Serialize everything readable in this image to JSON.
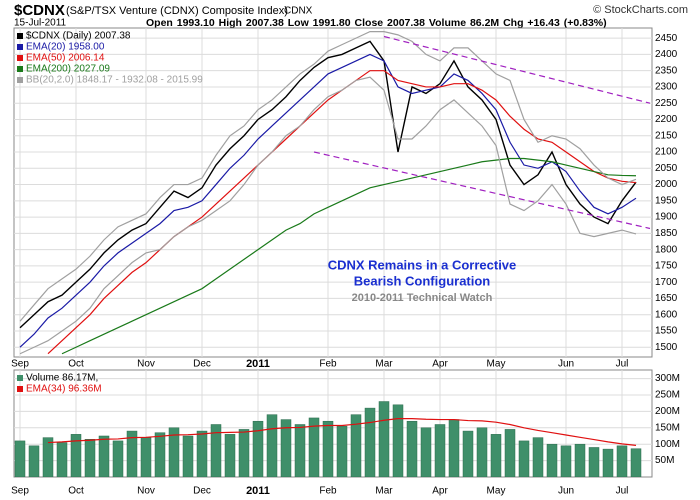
{
  "header": {
    "symbol": "$CDNX",
    "name": "(S&P/TSX Venture (CDNX) Composite Index)",
    "exchange": "CDNX",
    "date": "15-Jul-2011",
    "quote": "Open 1993.10  High 2007.38  Low 1991.80  Close 2007.38  Volume 86.2M  Chg +16.43 (+0.83%)",
    "credit": "© StockCharts.com"
  },
  "chart_data": [
    {
      "type": "line",
      "panel": "price",
      "categories": [
        "Sep",
        null,
        null,
        null,
        "Oct",
        null,
        null,
        null,
        null,
        "Nov",
        null,
        null,
        null,
        "Dec",
        null,
        null,
        null,
        "2011",
        null,
        null,
        null,
        null,
        "Feb",
        null,
        null,
        null,
        "Mar",
        null,
        null,
        null,
        "Apr",
        null,
        null,
        null,
        "May",
        null,
        null,
        null,
        null,
        "Jun",
        null,
        null,
        null,
        "Jul",
        null
      ],
      "series": [
        {
          "name": "$CDNX (Daily) 2007.38",
          "color": "#000000",
          "values": [
            1560,
            1600,
            1640,
            1660,
            1700,
            1740,
            1790,
            1830,
            1860,
            1880,
            1930,
            1980,
            1960,
            1990,
            2060,
            2110,
            2150,
            2200,
            2230,
            2270,
            2320,
            2360,
            2390,
            2400,
            2420,
            2440,
            2380,
            2100,
            2300,
            2280,
            2310,
            2380,
            2300,
            2260,
            2200,
            2060,
            2000,
            2030,
            2100,
            2000,
            1940,
            1900,
            1880,
            1950,
            2007.38
          ]
        },
        {
          "name": "EMA(20) 1958.00",
          "color": "#1a1aa6",
          "values": [
            1500,
            1540,
            1590,
            1620,
            1660,
            1700,
            1750,
            1790,
            1820,
            1850,
            1880,
            1920,
            1930,
            1950,
            2000,
            2050,
            2090,
            2140,
            2180,
            2220,
            2260,
            2300,
            2340,
            2360,
            2380,
            2400,
            2380,
            2300,
            2280,
            2290,
            2300,
            2340,
            2320,
            2280,
            2230,
            2130,
            2060,
            2050,
            2070,
            2040,
            1980,
            1930,
            1910,
            1930,
            1958
          ]
        },
        {
          "name": "EMA(50) 2006.14",
          "color": "#e01010",
          "values": [
            null,
            null,
            1480,
            1520,
            1560,
            1600,
            1650,
            1690,
            1730,
            1760,
            1800,
            1840,
            1870,
            1900,
            1940,
            1980,
            2020,
            2060,
            2100,
            2140,
            2180,
            2220,
            2260,
            2290,
            2320,
            2350,
            2350,
            2320,
            2310,
            2300,
            2300,
            2310,
            2310,
            2290,
            2260,
            2210,
            2170,
            2140,
            2130,
            2100,
            2070,
            2040,
            2020,
            2010,
            2006.14
          ]
        },
        {
          "name": "EMA(200) 2027.09",
          "color": "#1a7a1a",
          "values": [
            null,
            null,
            null,
            1480,
            1500,
            1520,
            1540,
            1560,
            1580,
            1600,
            1620,
            1640,
            1660,
            1680,
            1710,
            1740,
            1770,
            1800,
            1830,
            1860,
            1880,
            1910,
            1930,
            1950,
            1970,
            1990,
            2000,
            2010,
            2020,
            2030,
            2040,
            2050,
            2060,
            2070,
            2075,
            2080,
            2080,
            2075,
            2070,
            2060,
            2050,
            2040,
            2030,
            2028,
            2027.09
          ]
        },
        {
          "name": "BB(20,2.0) 1848.17 - 1932.08 - 2015.99",
          "color": "#a0a0a0",
          "values": [
            1580,
            1630,
            1680,
            1710,
            1740,
            1780,
            1830,
            1870,
            1890,
            1910,
            1960,
            2000,
            2000,
            2020,
            2090,
            2150,
            2180,
            2230,
            2260,
            2300,
            2340,
            2370,
            2410,
            2430,
            2450,
            2470,
            2470,
            2460,
            2440,
            2400,
            2380,
            2420,
            2420,
            2380,
            2340,
            2320,
            2200,
            2130,
            2150,
            2140,
            2110,
            2060,
            2020,
            2000,
            2015.99
          ],
          "lower": [
            1480,
            1500,
            1520,
            1550,
            1580,
            1620,
            1680,
            1720,
            1760,
            1790,
            1800,
            1840,
            1870,
            1890,
            1920,
            1950,
            2000,
            2060,
            2100,
            2150,
            2180,
            2230,
            2270,
            2290,
            2320,
            2330,
            2290,
            2140,
            2140,
            2180,
            2230,
            2260,
            2220,
            2180,
            2120,
            1940,
            1920,
            1950,
            2000,
            1940,
            1850,
            1840,
            1850,
            1860,
            1848.17
          ]
        }
      ],
      "ylim": [
        1470,
        2475
      ],
      "yticks": [
        1500,
        1550,
        1600,
        1650,
        1700,
        1750,
        1800,
        1850,
        1900,
        1950,
        2000,
        2050,
        2100,
        2150,
        2200,
        2250,
        2300,
        2350,
        2400,
        2450
      ],
      "grid": true,
      "trendlines": [
        {
          "color": "#a020c0",
          "from": [
            26,
            2455
          ],
          "to": [
            45,
            2250
          ]
        },
        {
          "color": "#a020c0",
          "from": [
            21,
            2100
          ],
          "to": [
            45,
            1865
          ]
        }
      ],
      "annotations": [
        {
          "text": "CDNX Remains in a Corrective",
          "color": "#1a2fd0"
        },
        {
          "text": "Bearish Configuration",
          "color": "#1a2fd0"
        },
        {
          "text": "2010-2011 Technical Watch",
          "color": "#888888"
        }
      ]
    },
    {
      "type": "bar",
      "panel": "volume",
      "categories": [
        "Sep",
        null,
        null,
        null,
        "Oct",
        null,
        null,
        null,
        null,
        "Nov",
        null,
        null,
        null,
        "Dec",
        null,
        null,
        null,
        "2011",
        null,
        null,
        null,
        null,
        "Feb",
        null,
        null,
        null,
        "Mar",
        null,
        null,
        null,
        "Apr",
        null,
        null,
        null,
        "May",
        null,
        null,
        null,
        null,
        "Jun",
        null,
        null,
        null,
        "Jul",
        null
      ],
      "series": [
        {
          "name": "Volume 86.17M,",
          "color": "#3f8f6a",
          "values": [
            110000000,
            95000000,
            120000000,
            105000000,
            130000000,
            115000000,
            125000000,
            110000000,
            140000000,
            120000000,
            135000000,
            150000000,
            125000000,
            140000000,
            160000000,
            130000000,
            145000000,
            170000000,
            190000000,
            175000000,
            160000000,
            180000000,
            170000000,
            155000000,
            190000000,
            210000000,
            230000000,
            220000000,
            170000000,
            150000000,
            160000000,
            175000000,
            140000000,
            150000000,
            130000000,
            145000000,
            110000000,
            120000000,
            100000000,
            95000000,
            100000000,
            90000000,
            85000000,
            95000000,
            86170000
          ]
        },
        {
          "name": "EMA(34) 96.36M",
          "color": "#e01010",
          "values": [
            null,
            null,
            105000000,
            107000000,
            110000000,
            112000000,
            115000000,
            116000000,
            120000000,
            121000000,
            124000000,
            128000000,
            129000000,
            131000000,
            135000000,
            136000000,
            137000000,
            141000000,
            147000000,
            150000000,
            151000000,
            155000000,
            157000000,
            157000000,
            161000000,
            166000000,
            173000000,
            178000000,
            178000000,
            176000000,
            175000000,
            175000000,
            172000000,
            171000000,
            167000000,
            160000000,
            150000000,
            142000000,
            135000000,
            128000000,
            121000000,
            114000000,
            107000000,
            101000000,
            96360000
          ]
        }
      ],
      "ylim": [
        0,
        320000000
      ],
      "yticks": [
        {
          "value": 50000000,
          "label": "50M"
        },
        {
          "value": 100000000,
          "label": "100M"
        },
        {
          "value": 150000000,
          "label": "150M"
        },
        {
          "value": 200000000,
          "label": "200M"
        },
        {
          "value": 250000000,
          "label": "250M"
        },
        {
          "value": 300000000,
          "label": "300M"
        }
      ],
      "grid": true
    }
  ]
}
